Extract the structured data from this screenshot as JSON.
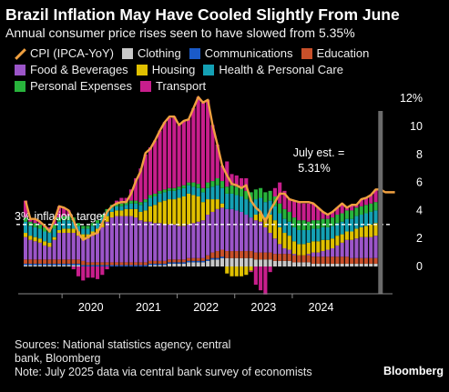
{
  "title": "Brazil Inflation May Have Cooled Slightly From June",
  "subtitle": "Annual consumer price rises seen to have slowed from 5.35%",
  "legend": [
    {
      "label": "CPI (IPCA-YoY)",
      "color": "#f0a040",
      "kind": "line"
    },
    {
      "label": "Clothing",
      "color": "#c8c8c8",
      "kind": "box"
    },
    {
      "label": "Communications",
      "color": "#1a5ac8",
      "kind": "box"
    },
    {
      "label": "Education",
      "color": "#c8502a",
      "kind": "box"
    },
    {
      "label": "Food & Beverages",
      "color": "#9b55c8",
      "kind": "box"
    },
    {
      "label": "Housing",
      "color": "#e0c000",
      "kind": "box"
    },
    {
      "label": "Health & Personal Care",
      "color": "#14a0b4",
      "kind": "box"
    },
    {
      "label": "Personal Expenses",
      "color": "#28b43c",
      "kind": "box"
    },
    {
      "label": "Transport",
      "color": "#c81e8c",
      "kind": "box"
    }
  ],
  "chart_data": {
    "type": "bar",
    "stacked": true,
    "x_start": "2019-05",
    "x_end": "2025-07",
    "x_ticks": [
      "2020",
      "2021",
      "2022",
      "2023",
      "2024"
    ],
    "y_ticks": [
      "0",
      "2",
      "4",
      "6",
      "8",
      "10",
      "12%"
    ],
    "ylim": [
      -2.2,
      12
    ],
    "grid": false,
    "reference_line": {
      "value": 3,
      "label": "3% inflation target"
    },
    "annotation": {
      "line1": "July est. =",
      "line2": "5.31%",
      "month": "2025-07"
    },
    "cpi_line": {
      "name": "CPI (IPCA-YoY)",
      "color": "#f0a040",
      "values": [
        4.7,
        3.4,
        3.4,
        3.2,
        2.9,
        2.5,
        3.3,
        4.3,
        4.2,
        4.0,
        3.3,
        2.4,
        1.9,
        2.1,
        2.3,
        2.4,
        3.1,
        3.9,
        4.3,
        4.5,
        4.6,
        4.6,
        5.2,
        6.1,
        6.8,
        8.1,
        8.4,
        9.0,
        9.7,
        10.3,
        10.7,
        10.7,
        10.1,
        10.4,
        10.5,
        11.3,
        12.1,
        11.7,
        11.9,
        10.1,
        8.7,
        7.2,
        6.5,
        5.9,
        5.8,
        5.6,
        5.8,
        4.7,
        4.2,
        3.9,
        3.2,
        4.0,
        4.6,
        5.2,
        5.2,
        4.8,
        4.7,
        4.6,
        4.6,
        4.6,
        4.5,
        4.2,
        3.9,
        3.7,
        3.9,
        4.2,
        4.5,
        4.2,
        4.4,
        4.4,
        4.8,
        4.9,
        5.1,
        5.5,
        5.5,
        5.3,
        5.3,
        5.3
      ]
    },
    "series": [
      {
        "name": "Clothing",
        "color": "#c8c8c8",
        "values": [
          0.1,
          0.1,
          0.1,
          0.1,
          0.1,
          0.1,
          0.1,
          0.1,
          0.1,
          0.1,
          0.1,
          0.1,
          0,
          0,
          0,
          0,
          0,
          0,
          0,
          0,
          0,
          0,
          0,
          0,
          0,
          0,
          0.1,
          0.1,
          0.1,
          0.1,
          0.2,
          0.2,
          0.2,
          0.2,
          0.3,
          0.3,
          0.3,
          0.3,
          0.4,
          0.5,
          0.5,
          0.6,
          0.6,
          0.6,
          0.6,
          0.6,
          0.6,
          0.6,
          0.5,
          0.5,
          0.5,
          0.5,
          0.4,
          0.4,
          0.4,
          0.4,
          0.3,
          0.3,
          0.3,
          0.3,
          0.2,
          0.2,
          0.2,
          0.2,
          0.2,
          0.2,
          0.2,
          0.2,
          0.2,
          0.2,
          0.2,
          0.2,
          0.2,
          0.2,
          0.2,
          0.2,
          0.2,
          0.2
        ]
      },
      {
        "name": "Communications",
        "color": "#1a5ac8",
        "values": [
          0.1,
          0.1,
          0.1,
          0.1,
          0.1,
          0.1,
          0.1,
          0.1,
          0.1,
          0.1,
          0.1,
          0.1,
          0.1,
          0.1,
          0.1,
          0.1,
          0.1,
          0.1,
          0.1,
          0.1,
          0.1,
          0.1,
          0.1,
          0.1,
          0.1,
          0.1,
          0.1,
          0.1,
          0.1,
          0.1,
          0.1,
          0.1,
          0.1,
          0.1,
          0.1,
          0.1,
          0.1,
          0.1,
          0.1,
          0.1,
          0.1,
          0.1,
          0,
          0,
          0,
          0,
          0,
          0,
          0,
          0,
          0,
          0,
          0,
          0,
          0,
          0,
          0,
          0,
          0,
          0,
          0,
          0,
          0,
          0,
          0,
          0,
          0,
          0,
          0,
          0,
          0,
          0,
          0,
          0,
          0,
          0,
          0,
          0
        ]
      },
      {
        "name": "Education",
        "color": "#c8502a",
        "values": [
          0.3,
          0.3,
          0.3,
          0.3,
          0.3,
          0.3,
          0.3,
          0.3,
          0.3,
          0.3,
          0.3,
          0.3,
          0.3,
          0.2,
          0.2,
          0.2,
          0.2,
          0.2,
          0.2,
          0.2,
          0.2,
          0.2,
          0.2,
          0.2,
          0.2,
          0.2,
          0.2,
          0.2,
          0.2,
          0.2,
          0.2,
          0.2,
          0.2,
          0.2,
          0.2,
          0.2,
          0.2,
          0.2,
          0.3,
          0.4,
          0.5,
          0.5,
          0.5,
          0.5,
          0.5,
          0.5,
          0.5,
          0.5,
          0.5,
          0.5,
          0.5,
          0.5,
          0.5,
          0.5,
          0.5,
          0.5,
          0.5,
          0.5,
          0.5,
          0.5,
          0.5,
          0.5,
          0.5,
          0.5,
          0.5,
          0.5,
          0.5,
          0.5,
          0.4,
          0.4,
          0.4,
          0.4,
          0.4,
          0.4,
          0.4,
          0.4,
          0.4,
          0.4
        ]
      },
      {
        "name": "Food & Beverages",
        "color": "#9b55c8",
        "values": [
          1.6,
          1.4,
          1.3,
          1.2,
          1.0,
          0.9,
          1.4,
          1.9,
          1.9,
          1.9,
          1.9,
          1.7,
          1.6,
          1.7,
          1.9,
          2.1,
          2.5,
          2.9,
          3.2,
          3.3,
          3.3,
          3.3,
          3.3,
          3.2,
          3.0,
          2.9,
          2.8,
          2.7,
          2.7,
          2.6,
          2.5,
          2.5,
          2.4,
          2.4,
          2.4,
          2.5,
          2.6,
          2.7,
          2.9,
          2.9,
          3.0,
          3.0,
          3.0,
          3.0,
          2.9,
          2.8,
          2.6,
          2.4,
          2.3,
          2.2,
          1.8,
          1.4,
          1.1,
          0.7,
          0.4,
          0.3,
          0.1,
          0,
          0,
          0.1,
          0.3,
          0.3,
          0.4,
          0.5,
          0.6,
          0.8,
          1.0,
          1.2,
          1.3,
          1.4,
          1.5,
          1.5,
          1.5,
          1.6,
          1.7,
          1.7,
          1.6,
          1.6
        ]
      },
      {
        "name": "Housing",
        "color": "#e0c000",
        "values": [
          0.3,
          0.3,
          0.3,
          0.3,
          0.3,
          0.3,
          0.2,
          0.2,
          0.3,
          0.3,
          0.3,
          0.3,
          0.3,
          0.3,
          0.3,
          0.3,
          0.3,
          0.4,
          0.4,
          0.4,
          0.4,
          0.5,
          0.5,
          0.6,
          0.6,
          0.8,
          1.1,
          1.3,
          1.5,
          1.7,
          1.8,
          1.8,
          2.0,
          2.1,
          2.2,
          2.0,
          1.8,
          1.3,
          1.1,
          0.9,
          0.7,
          0.3,
          -0.5,
          -0.7,
          -0.7,
          -0.7,
          -0.6,
          -0.3,
          0.4,
          0.6,
          0.7,
          1.3,
          1.3,
          1.2,
          1.1,
          1.0,
          0.9,
          0.8,
          0.8,
          0.8,
          0.8,
          0.8,
          0.8,
          0.7,
          0.7,
          0.7,
          0.6,
          0.6,
          0.6,
          0.7,
          0.7,
          0.8,
          0.9,
          0.9,
          0.8,
          0.8,
          0.7,
          0.7
        ]
      },
      {
        "name": "Health & Personal Care",
        "color": "#14a0b4",
        "values": [
          0.8,
          0.7,
          0.7,
          0.7,
          0.7,
          0.7,
          0.6,
          0.6,
          0.6,
          0.6,
          0.5,
          0.4,
          0.4,
          0.4,
          0.4,
          0.4,
          0.4,
          0.3,
          0.3,
          0.3,
          0.3,
          0.3,
          0.4,
          0.4,
          0.5,
          0.6,
          0.6,
          0.6,
          0.6,
          0.6,
          0.6,
          0.6,
          0.6,
          0.6,
          0.6,
          0.6,
          0.6,
          0.7,
          0.8,
          0.9,
          1.0,
          1.1,
          1.1,
          1.1,
          1.1,
          1.1,
          1.1,
          1.1,
          1.1,
          1.1,
          1.1,
          1.0,
          1.0,
          1.0,
          1.0,
          1.0,
          1.0,
          1.0,
          1.0,
          0.9,
          0.9,
          0.9,
          0.9,
          0.9,
          0.9,
          0.9,
          0.9,
          0.9,
          0.9,
          0.9,
          0.9,
          0.9,
          0.9,
          0.9,
          0.9,
          0.9,
          0.9,
          0.9
        ]
      },
      {
        "name": "Personal Expenses",
        "color": "#28b43c",
        "values": [
          0.3,
          0.3,
          0.3,
          0.3,
          0.3,
          0.3,
          0.3,
          0.3,
          0.3,
          0.3,
          0.3,
          0.2,
          0.2,
          0.2,
          0.2,
          0.2,
          0.2,
          0.2,
          0.2,
          0.2,
          0.2,
          0.2,
          0.2,
          0.2,
          0.2,
          0.2,
          0.2,
          0.2,
          0.2,
          0.2,
          0.2,
          0.2,
          0.2,
          0.2,
          0.2,
          0.3,
          0.3,
          0.3,
          0.4,
          0.4,
          0.5,
          0.5,
          0.5,
          0.6,
          0.6,
          0.6,
          0.6,
          0.7,
          0.7,
          0.7,
          0.7,
          0.7,
          0.7,
          0.7,
          0.7,
          0.7,
          0.7,
          0.7,
          0.7,
          0.6,
          0.6,
          0.6,
          0.6,
          0.6,
          0.6,
          0.6,
          0.6,
          0.6,
          0.6,
          0.6,
          0.6,
          0.6,
          0.6,
          0.6,
          0.6,
          0.6,
          0.6,
          0.6
        ]
      },
      {
        "name": "Transport",
        "color": "#c81e8c",
        "values": [
          1.2,
          0.2,
          0.3,
          0.2,
          0.1,
          0.1,
          0.3,
          0.8,
          0.6,
          0.4,
          -0.2,
          -0.7,
          -1.0,
          -0.8,
          -0.8,
          -0.9,
          -0.6,
          -0.2,
          0,
          0.2,
          0.4,
          0.3,
          0.8,
          1.6,
          2.4,
          3.2,
          3.4,
          3.8,
          4.3,
          4.8,
          5.0,
          5.1,
          4.4,
          4.6,
          4.5,
          5.3,
          6.2,
          6.1,
          5.9,
          4.0,
          2.4,
          1.1,
          1.8,
          0.8,
          0.8,
          0.7,
          0.9,
          -0.1,
          -1.3,
          -1.7,
          -2.0,
          -0.4,
          0.6,
          1.5,
          1.3,
          0.9,
          1.2,
          1.3,
          1.2,
          1.3,
          1.2,
          0.9,
          0.5,
          0.3,
          0.4,
          0.5,
          0.7,
          0.2,
          0.4,
          0.2,
          0.5,
          0.5,
          0.6,
          0.9,
          0.9,
          0.7,
          0.9,
          0.9
        ]
      }
    ]
  },
  "footnotes": {
    "sources": "Sources: National statistics agency, central",
    "sources_cont": "bank, Bloomberg",
    "note": "Note: July 2025 data via central bank survey of economists"
  },
  "logo": "Bloomberg"
}
